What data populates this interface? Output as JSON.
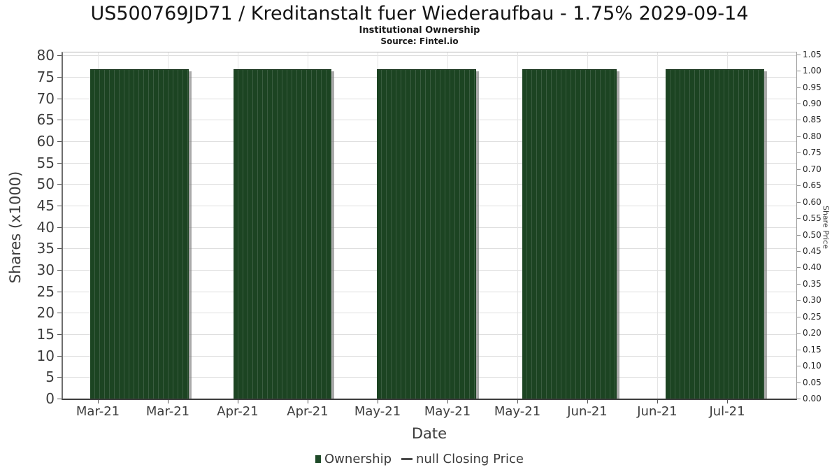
{
  "header": {
    "title": "US500769JD71 / Kreditanstalt fuer Wiederaufbau - 1.75% 2029-09-14",
    "subtitle": "Institutional Ownership",
    "source": "Source: Fintel.io"
  },
  "chart_data": {
    "type": "bar",
    "title": "US500769JD71 / Kreditanstalt fuer Wiederaufbau - 1.75% 2029-09-14",
    "subtitle": "Institutional Ownership",
    "source": "Source: Fintel.io",
    "xlabel": "Date",
    "ylabel_left": "Shares (x1000)",
    "ylabel_right": "Share Price",
    "grid": true,
    "legend_position": "bottom-center",
    "x_tick_labels": [
      "Mar-21",
      "Mar-21",
      "Apr-21",
      "Apr-21",
      "May-21",
      "May-21",
      "May-21",
      "Jun-21",
      "Jun-21",
      "Jul-21"
    ],
    "y_left": {
      "min": 0,
      "max": 80,
      "tick_step": 5,
      "ticks": [
        0,
        5,
        10,
        15,
        20,
        25,
        30,
        35,
        40,
        45,
        50,
        55,
        60,
        65,
        70,
        75,
        80
      ]
    },
    "y_right": {
      "min": 0.0,
      "max": 1.05,
      "tick_step": 0.05,
      "ticks": [
        "0.00",
        "0.05",
        "0.10",
        "0.15",
        "0.20",
        "0.25",
        "0.30",
        "0.35",
        "0.40",
        "0.45",
        "0.50",
        "0.55",
        "0.60",
        "0.65",
        "0.70",
        "0.75",
        "0.80",
        "0.85",
        "0.90",
        "0.95",
        "1.00",
        "1.05"
      ]
    },
    "series": [
      {
        "name": "Ownership",
        "type": "bar",
        "color": "#1c4422",
        "note": "five clusters of daily bars, constant height ~76.6 (x1000 shares), aligning with ~1.00 on the right price axis",
        "groups": [
          {
            "period": "Mar-21",
            "value": 76.6
          },
          {
            "period": "Apr-21",
            "value": 76.6
          },
          {
            "period": "May-21",
            "value": 76.6
          },
          {
            "period": "Jun-21",
            "value": 76.6
          },
          {
            "period": "Jul-21",
            "value": 76.6
          }
        ]
      },
      {
        "name": "null Closing Price",
        "type": "line",
        "color": "#4a4a4a",
        "values": []
      }
    ]
  },
  "legend": {
    "ownership": "Ownership",
    "price": "null Closing Price"
  },
  "colors": {
    "bar": "#1c4422",
    "bar_stripe": "#3a5c40",
    "bar_shadow": "#7d7d7d",
    "grid": "#dedede",
    "axis_text": "#3c3c3c",
    "title_text": "#141414",
    "legend_marker": "#1e4a28"
  }
}
